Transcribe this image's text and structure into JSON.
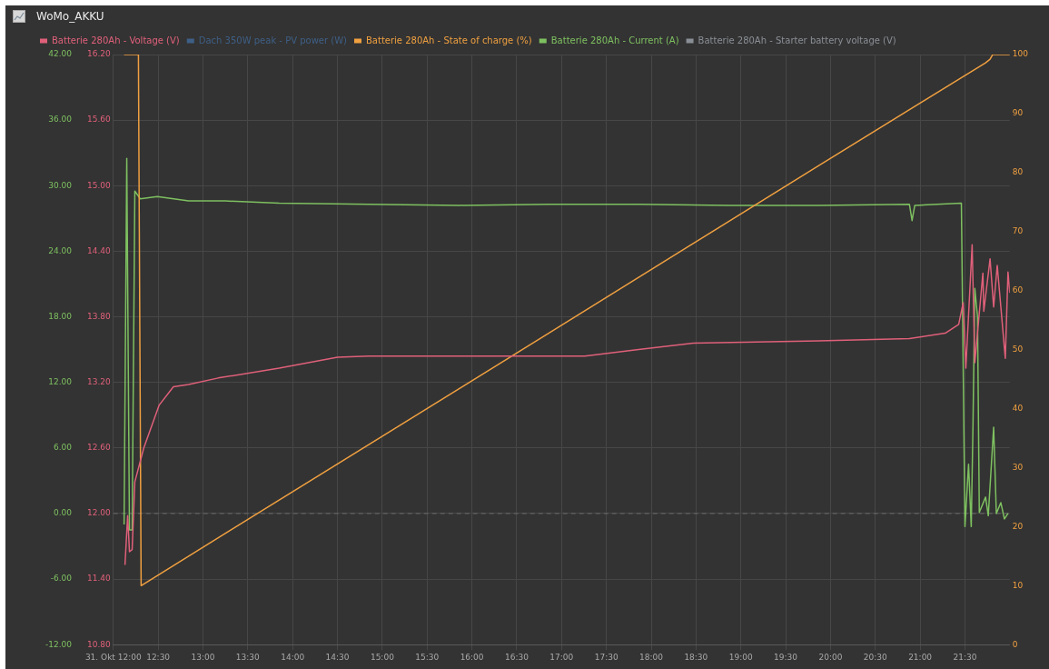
{
  "chart_data": {
    "type": "line",
    "title": "WoMo_AKKU",
    "legend": "top left",
    "grid": true,
    "marker": "none",
    "line_style": "solid",
    "xlim": [
      12,
      22
    ],
    "xticks": [
      {
        "value": 12,
        "label": "31. Okt 12:00"
      },
      {
        "value": 12.5,
        "label": "12:30"
      },
      {
        "value": 13,
        "label": "13:00"
      },
      {
        "value": 13.5,
        "label": "13:30"
      },
      {
        "value": 14,
        "label": "14:00"
      },
      {
        "value": 14.5,
        "label": "14:30"
      },
      {
        "value": 15,
        "label": "15:00"
      },
      {
        "value": 15.5,
        "label": "15:30"
      },
      {
        "value": 16,
        "label": "16:00"
      },
      {
        "value": 16.5,
        "label": "16:30"
      },
      {
        "value": 17,
        "label": "17:00"
      },
      {
        "value": 17.5,
        "label": "17:30"
      },
      {
        "value": 18,
        "label": "18:00"
      },
      {
        "value": 18.5,
        "label": "18:30"
      },
      {
        "value": 19,
        "label": "19:00"
      },
      {
        "value": 19.5,
        "label": "19:30"
      },
      {
        "value": 20,
        "label": "20:00"
      },
      {
        "value": 20.5,
        "label": "20:30"
      },
      {
        "value": 21,
        "label": "21:00"
      },
      {
        "value": 21.5,
        "label": "21:30"
      }
    ],
    "ylim": [
      -12,
      42
    ],
    "yticks": [
      {
        "value": -12,
        "label": "-12.00"
      },
      {
        "value": -6,
        "label": "-6.00"
      },
      {
        "value": 0,
        "label": "0.00"
      },
      {
        "value": 6,
        "label": "6.00"
      },
      {
        "value": 12,
        "label": "12.00"
      },
      {
        "value": 18,
        "label": "18.00"
      },
      {
        "value": 24,
        "label": "24.00"
      },
      {
        "value": 30,
        "label": "30.00"
      },
      {
        "value": 36,
        "label": "36.00"
      },
      {
        "value": 42,
        "label": "42.00"
      }
    ],
    "y2lim": [
      10.8,
      16.2
    ],
    "y2ticks": [
      {
        "value": 10.8,
        "label": "10.80"
      },
      {
        "value": 11.4,
        "label": "11.40"
      },
      {
        "value": 12,
        "label": "12.00"
      },
      {
        "value": 12.6,
        "label": "12.60"
      },
      {
        "value": 13.2,
        "label": "13.20"
      },
      {
        "value": 13.8,
        "label": "13.80"
      },
      {
        "value": 14.4,
        "label": "14.40"
      },
      {
        "value": 15,
        "label": "15.00"
      },
      {
        "value": 15.6,
        "label": "15.60"
      },
      {
        "value": 16.2,
        "label": "16.20"
      }
    ],
    "y3lim": [
      0,
      100
    ],
    "y3ticks": [
      0,
      10,
      20,
      30,
      40,
      50,
      60,
      70,
      80,
      90,
      100
    ],
    "ref_lines": [
      {
        "axis": "y",
        "value": 0,
        "line_style": "dashed",
        "color": "#6a6a6a"
      }
    ],
    "series": [
      {
        "name": "Batterie 280Ah - Voltage (V)",
        "color": "#e0607a",
        "axis": "y2",
        "x": [
          12.13,
          12.16,
          12.18,
          12.21,
          12.24,
          12.34,
          12.51,
          12.67,
          12.84,
          13.17,
          13.85,
          14.5,
          14.85,
          17.26,
          17.86,
          18.47,
          19.87,
          20.88,
          21.28,
          21.43,
          21.48,
          21.51,
          21.58,
          21.61,
          21.7,
          21.71,
          21.78,
          21.82,
          21.86,
          21.95,
          21.98,
          22.0
        ],
        "values": [
          11.53,
          11.98,
          11.65,
          11.67,
          12.29,
          12.6,
          12.99,
          13.16,
          13.18,
          13.24,
          13.33,
          13.43,
          13.44,
          13.44,
          13.5,
          13.56,
          13.58,
          13.6,
          13.65,
          13.73,
          13.93,
          13.33,
          14.46,
          13.38,
          14.2,
          13.85,
          14.33,
          13.89,
          14.27,
          13.42,
          14.21,
          14.02
        ]
      },
      {
        "name": "Dach 350W peak - PV power (W)",
        "color": "#3e5f86",
        "axis": "y",
        "values": [
          null
        ]
      },
      {
        "name": "Batterie 280Ah - State of charge (%)",
        "color": "#f0a040",
        "axis": "y3",
        "x": [
          12.12,
          12.28,
          12.31,
          13.85,
          16.86,
          19.87,
          21.73,
          21.78,
          21.81,
          22.0
        ],
        "values": [
          100,
          100,
          10,
          24.5,
          52.8,
          81.2,
          98.6,
          99.2,
          100,
          100
        ]
      },
      {
        "name": "Batterie 280Ah - Current (A)",
        "color": "#7ec060",
        "axis": "y",
        "x": [
          12.12,
          12.15,
          12.18,
          12.21,
          12.24,
          12.3,
          12.49,
          12.84,
          13.25,
          13.85,
          14.85,
          15.86,
          16.86,
          17.86,
          18.87,
          19.87,
          20.88,
          20.91,
          20.94,
          21.46,
          21.5,
          21.54,
          21.57,
          21.59,
          21.61,
          21.64,
          21.66,
          21.73,
          21.76,
          21.82,
          21.85,
          21.9,
          21.94,
          21.98
        ],
        "values": [
          -1,
          32.5,
          -1.5,
          -1.5,
          29.5,
          28.8,
          29.0,
          28.6,
          28.6,
          28.4,
          28.3,
          28.2,
          28.3,
          28.3,
          28.2,
          28.2,
          28.3,
          26.8,
          28.2,
          28.4,
          -1.2,
          4.5,
          -1.2,
          8.3,
          20.6,
          18,
          0.1,
          1.5,
          -0.2,
          7.9,
          0,
          1,
          -0.5,
          0
        ]
      },
      {
        "name": "Batterie 280Ah - Starter battery voltage (V)",
        "color": "#8a8f96",
        "axis": "y2",
        "values": [
          null
        ]
      }
    ]
  }
}
